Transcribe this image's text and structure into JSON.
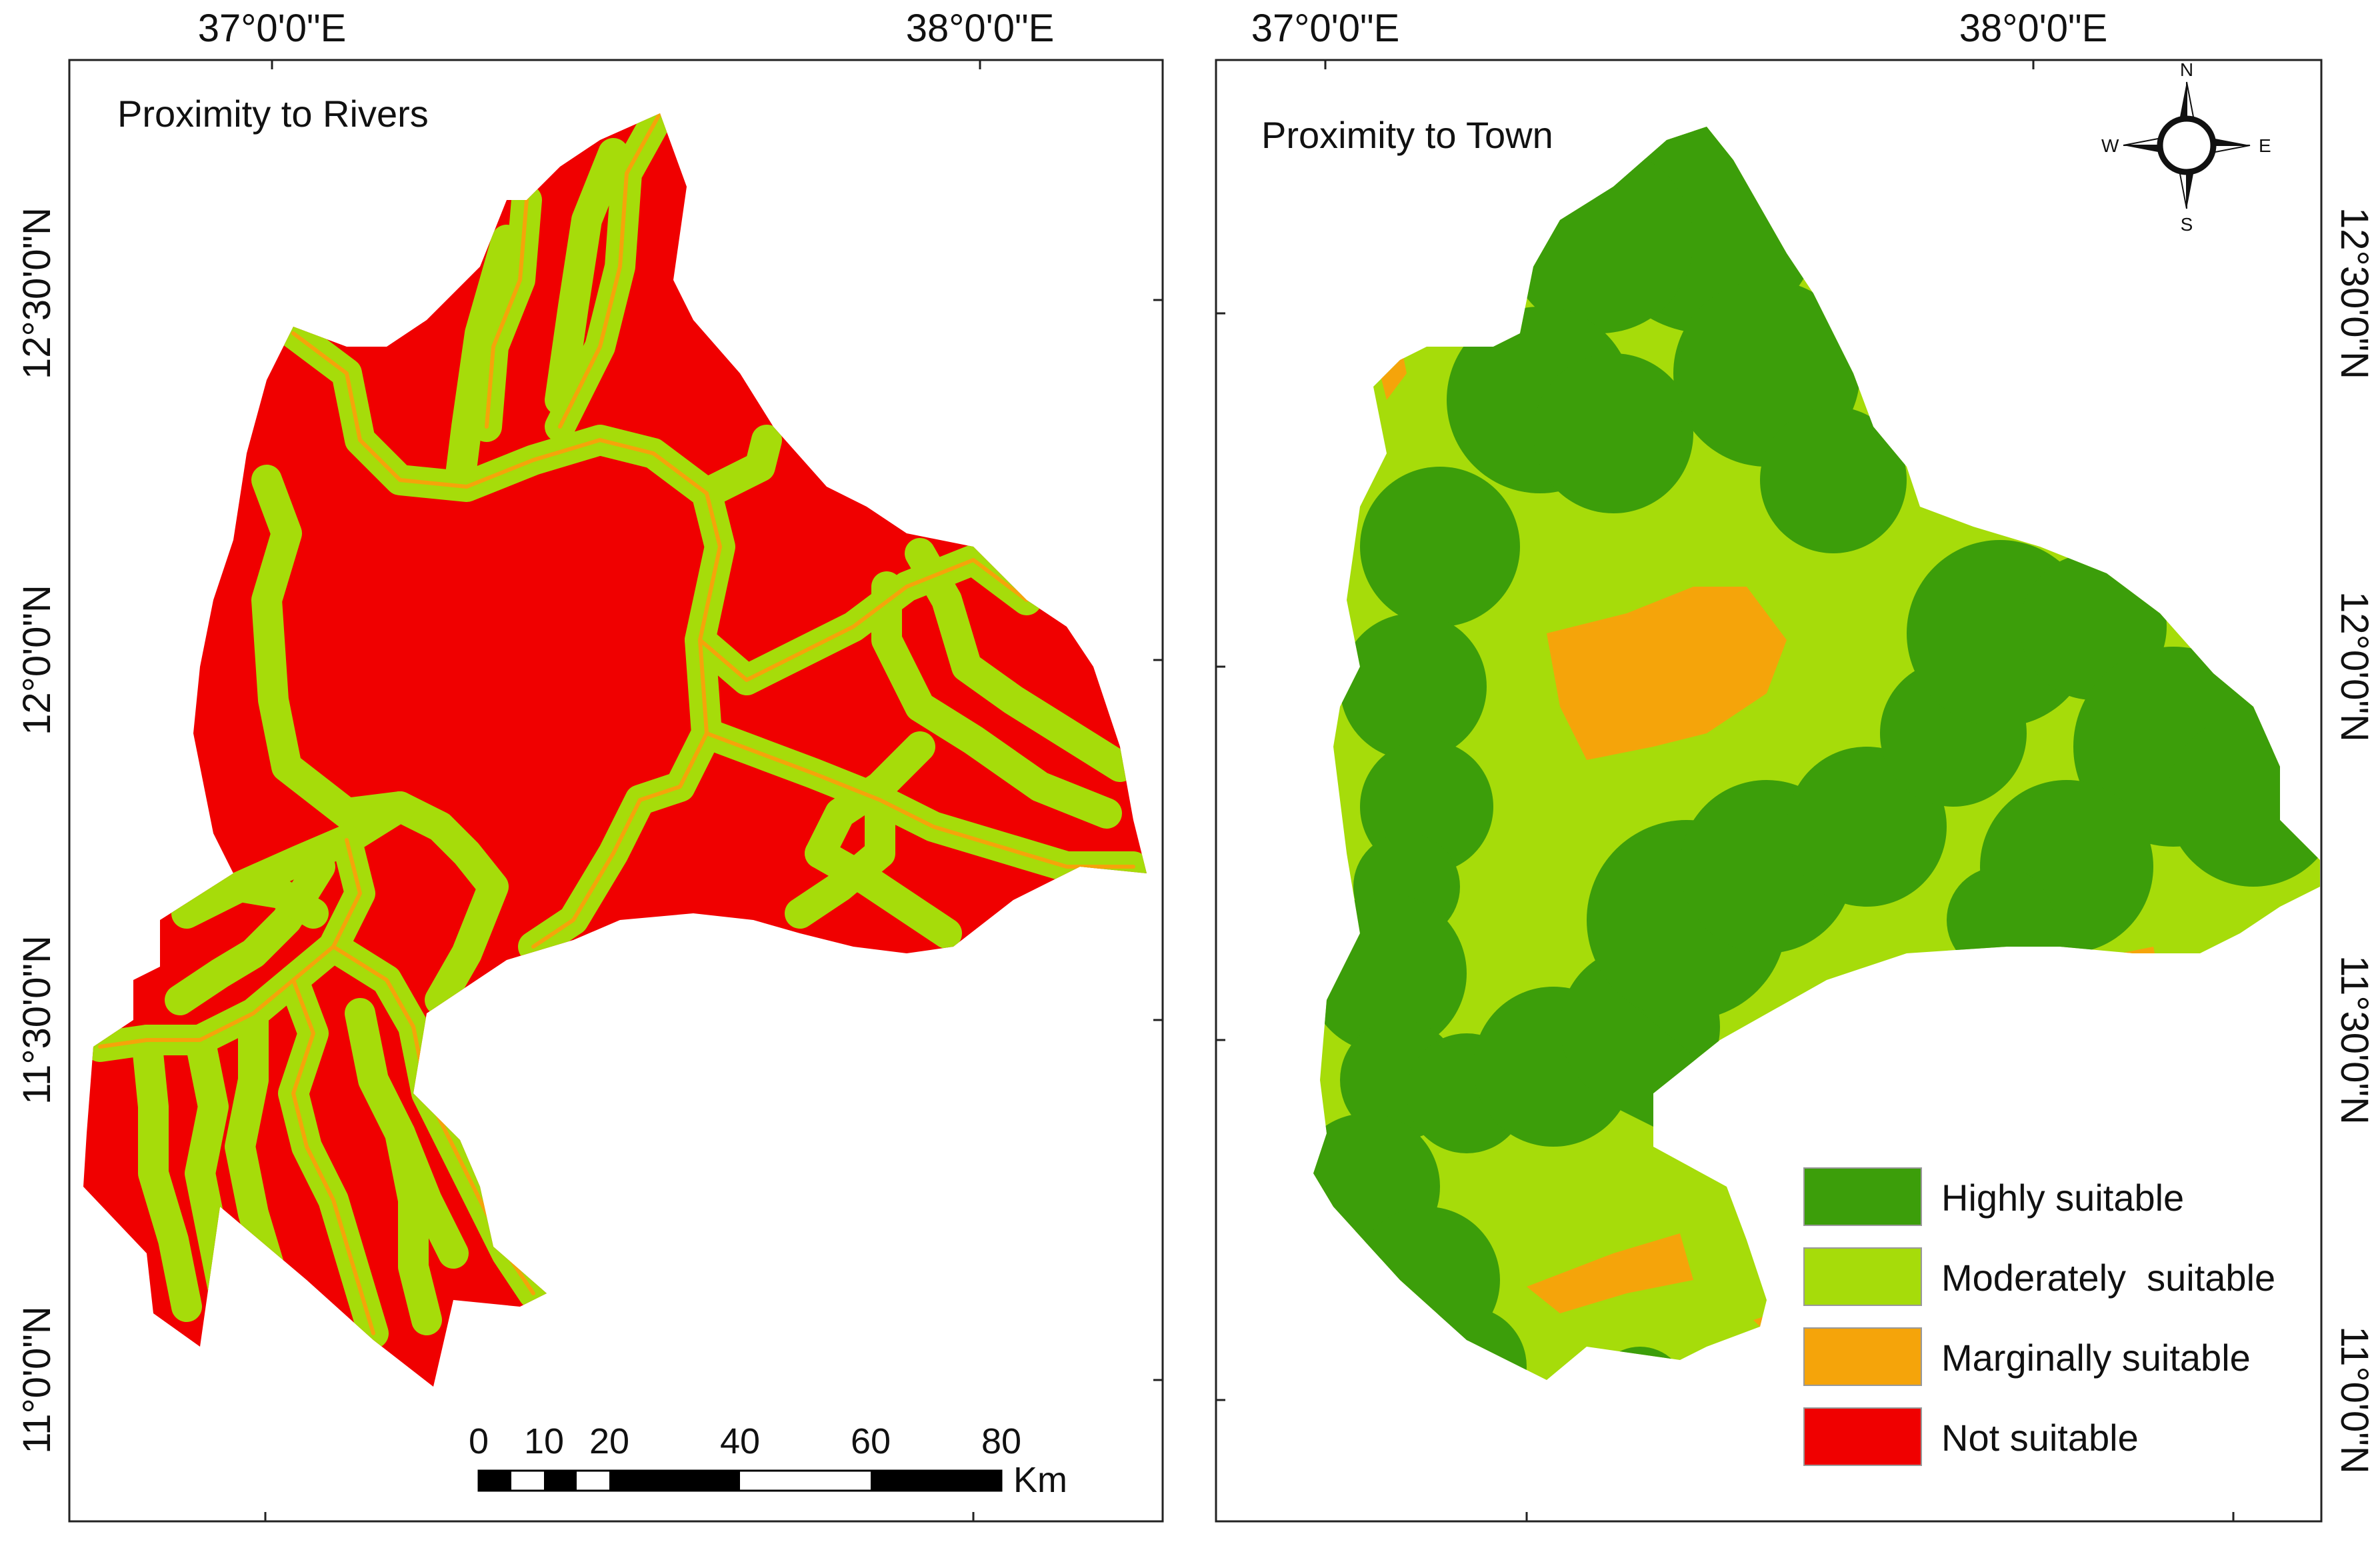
{
  "coords": {
    "lon_left": "37°0'0\"E",
    "lon_right": "38°0'0\"E",
    "lat_1230": "12°30'0\"N",
    "lat_1200": "12°0'0\"N",
    "lat_1130": "11°30'0\"N",
    "lat_1100": "11°0'0\"N"
  },
  "left_map": {
    "title": "Proximity to Rivers"
  },
  "right_map": {
    "title": "Proximity to Town"
  },
  "scale_bar": {
    "ticks": [
      "0",
      "10",
      "20",
      "40",
      "60",
      "80"
    ],
    "unit": "Km"
  },
  "north_arrow": {
    "n": "N",
    "s": "S",
    "e": "E",
    "w": "W"
  },
  "legend": {
    "items": [
      {
        "label": "Highly suitable",
        "color": "#3c9e0a"
      },
      {
        "label": "Moderately  suitable",
        "color": "#a6dc0a"
      },
      {
        "label": "Marginally suitable",
        "color": "#f5a40a"
      },
      {
        "label": "Not suitable",
        "color": "#f00000"
      }
    ]
  },
  "colors": {
    "not_suitable": "#f00000",
    "moderate": "#a6dc0a",
    "marginal": "#f5a40a",
    "high": "#3c9e0a"
  }
}
